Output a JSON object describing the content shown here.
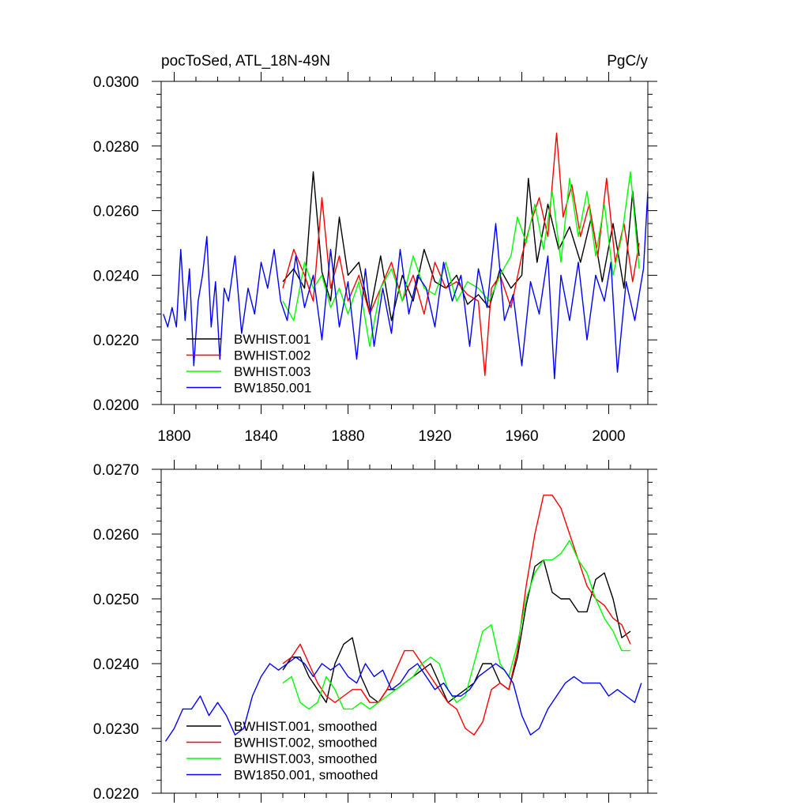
{
  "chart_data": [
    {
      "type": "line",
      "title_left": "pocToSed, ATL_18N-49N",
      "title_right": "PgC/y",
      "xlim": [
        1794,
        2018
      ],
      "ylim": [
        0.02,
        0.03
      ],
      "yticks": [
        "0.0200",
        "0.0220",
        "0.0240",
        "0.0260",
        "0.0280",
        "0.0300"
      ],
      "xticks": [
        "1800",
        "1840",
        "1880",
        "1920",
        "1960",
        "2000"
      ],
      "legend_position": "bottom-left",
      "series": [
        {
          "name": "BWHIST.001",
          "color": "#000000",
          "x": [
            1850,
            1855,
            1860,
            1864,
            1868,
            1872,
            1876,
            1880,
            1885,
            1890,
            1895,
            1900,
            1905,
            1910,
            1915,
            1920,
            1925,
            1930,
            1935,
            1940,
            1945,
            1950,
            1955,
            1960,
            1963,
            1967,
            1972,
            1977,
            1982,
            1987,
            1992,
            1997,
            2002,
            2007,
            2011,
            2014
          ],
          "values": [
            0.0238,
            0.0242,
            0.0236,
            0.0272,
            0.0241,
            0.0232,
            0.0258,
            0.024,
            0.0244,
            0.0228,
            0.0246,
            0.0226,
            0.024,
            0.0232,
            0.0248,
            0.0238,
            0.0236,
            0.024,
            0.0231,
            0.0234,
            0.023,
            0.0242,
            0.0236,
            0.024,
            0.027,
            0.0244,
            0.0262,
            0.0248,
            0.0255,
            0.0244,
            0.0258,
            0.0238,
            0.0256,
            0.0236,
            0.0266,
            0.0246
          ]
        },
        {
          "name": "BWHIST.002",
          "color": "#ff0000",
          "x": [
            1850,
            1855,
            1860,
            1864,
            1868,
            1872,
            1876,
            1880,
            1885,
            1890,
            1895,
            1900,
            1905,
            1910,
            1915,
            1920,
            1925,
            1930,
            1935,
            1940,
            1943,
            1946,
            1950,
            1955,
            1960,
            1964,
            1968,
            1972,
            1976,
            1979,
            1983,
            1987,
            1991,
            1995,
            1999,
            2003,
            2007,
            2011,
            2014
          ],
          "values": [
            0.0236,
            0.0248,
            0.024,
            0.0232,
            0.0264,
            0.0236,
            0.0246,
            0.0232,
            0.024,
            0.0228,
            0.0236,
            0.0244,
            0.0232,
            0.024,
            0.0228,
            0.0244,
            0.0236,
            0.0238,
            0.0234,
            0.0232,
            0.0209,
            0.0236,
            0.024,
            0.023,
            0.0246,
            0.0256,
            0.0264,
            0.0252,
            0.0284,
            0.0258,
            0.0268,
            0.0252,
            0.0262,
            0.0246,
            0.027,
            0.0244,
            0.0256,
            0.0238,
            0.025
          ]
        },
        {
          "name": "BWHIST.003",
          "color": "#00ff00",
          "x": [
            1850,
            1855,
            1860,
            1864,
            1868,
            1872,
            1876,
            1880,
            1885,
            1890,
            1895,
            1900,
            1905,
            1910,
            1915,
            1920,
            1925,
            1930,
            1935,
            1940,
            1945,
            1950,
            1955,
            1958,
            1962,
            1966,
            1970,
            1974,
            1978,
            1982,
            1986,
            1990,
            1994,
            1998,
            2002,
            2006,
            2010,
            2014
          ],
          "values": [
            0.0232,
            0.0226,
            0.0244,
            0.0236,
            0.024,
            0.023,
            0.0236,
            0.0228,
            0.0238,
            0.0218,
            0.0236,
            0.0242,
            0.0232,
            0.0246,
            0.0236,
            0.0234,
            0.0244,
            0.0232,
            0.0238,
            0.0236,
            0.0232,
            0.024,
            0.0246,
            0.0258,
            0.025,
            0.0262,
            0.0248,
            0.0266,
            0.0244,
            0.027,
            0.0252,
            0.0266,
            0.0246,
            0.0262,
            0.024,
            0.0252,
            0.0272,
            0.0242
          ]
        },
        {
          "name": "BW1850.001",
          "color": "#0000ff",
          "x": [
            1795,
            1797,
            1799,
            1801,
            1803,
            1805,
            1807,
            1809,
            1811,
            1813,
            1815,
            1817,
            1819,
            1821,
            1823,
            1825,
            1828,
            1831,
            1834,
            1837,
            1840,
            1843,
            1846,
            1849,
            1852,
            1856,
            1860,
            1864,
            1868,
            1872,
            1876,
            1880,
            1884,
            1888,
            1892,
            1896,
            1900,
            1904,
            1908,
            1912,
            1916,
            1920,
            1924,
            1928,
            1932,
            1936,
            1940,
            1944,
            1948,
            1952,
            1956,
            1960,
            1964,
            1968,
            1972,
            1975,
            1978,
            1982,
            1986,
            1990,
            1994,
            1998,
            2001,
            2004,
            2008,
            2012,
            2016,
            2018
          ],
          "values": [
            0.0228,
            0.0224,
            0.023,
            0.0224,
            0.0248,
            0.0226,
            0.0242,
            0.0212,
            0.0232,
            0.024,
            0.0252,
            0.0224,
            0.0238,
            0.0214,
            0.0236,
            0.0232,
            0.0246,
            0.0222,
            0.0236,
            0.0228,
            0.0244,
            0.0236,
            0.0248,
            0.0232,
            0.0226,
            0.0246,
            0.023,
            0.024,
            0.022,
            0.0248,
            0.0224,
            0.0238,
            0.0214,
            0.0242,
            0.0218,
            0.0236,
            0.0222,
            0.0248,
            0.0228,
            0.024,
            0.0236,
            0.0224,
            0.0244,
            0.0232,
            0.024,
            0.0218,
            0.0242,
            0.023,
            0.0256,
            0.0226,
            0.0234,
            0.0212,
            0.0238,
            0.0228,
            0.0246,
            0.0208,
            0.024,
            0.0226,
            0.0244,
            0.022,
            0.024,
            0.0232,
            0.0244,
            0.021,
            0.0238,
            0.0226,
            0.0242,
            0.0266
          ]
        }
      ]
    },
    {
      "type": "line",
      "xlim": [
        1794,
        2018
      ],
      "ylim": [
        0.022,
        0.027
      ],
      "yticks": [
        "0.0220",
        "0.0230",
        "0.0240",
        "0.0250",
        "0.0260",
        "0.0270"
      ],
      "xticks": [
        "1800",
        "1840",
        "1880",
        "1920",
        "1960",
        "2000"
      ],
      "xtick_labels_shown": false,
      "legend_position": "bottom-left",
      "series": [
        {
          "name": "BWHIST.001, smoothed",
          "color": "#000000",
          "x": [
            1850,
            1854,
            1858,
            1862,
            1866,
            1870,
            1874,
            1878,
            1882,
            1886,
            1890,
            1894,
            1898,
            1902,
            1906,
            1910,
            1914,
            1918,
            1922,
            1926,
            1930,
            1934,
            1938,
            1942,
            1946,
            1950,
            1954,
            1958,
            1962,
            1966,
            1970,
            1974,
            1978,
            1982,
            1986,
            1990,
            1994,
            1998,
            2002,
            2006,
            2010
          ],
          "values": [
            0.0239,
            0.0241,
            0.0241,
            0.0238,
            0.0236,
            0.0234,
            0.024,
            0.0243,
            0.0244,
            0.0238,
            0.0235,
            0.0234,
            0.0236,
            0.0236,
            0.0237,
            0.0238,
            0.0239,
            0.024,
            0.0237,
            0.0234,
            0.0235,
            0.0236,
            0.0237,
            0.024,
            0.024,
            0.0237,
            0.0236,
            0.0241,
            0.0249,
            0.0255,
            0.0256,
            0.0251,
            0.025,
            0.025,
            0.0248,
            0.0248,
            0.0253,
            0.0254,
            0.025,
            0.0244,
            0.0245
          ]
        },
        {
          "name": "BWHIST.002, smoothed",
          "color": "#ff0000",
          "x": [
            1850,
            1854,
            1858,
            1862,
            1866,
            1870,
            1874,
            1878,
            1882,
            1886,
            1890,
            1894,
            1898,
            1902,
            1906,
            1910,
            1914,
            1918,
            1922,
            1926,
            1930,
            1934,
            1938,
            1942,
            1946,
            1950,
            1954,
            1958,
            1962,
            1966,
            1970,
            1974,
            1978,
            1982,
            1986,
            1990,
            1994,
            1998,
            2002,
            2006,
            2010
          ],
          "values": [
            0.024,
            0.0241,
            0.0243,
            0.024,
            0.0237,
            0.0235,
            0.0234,
            0.0235,
            0.0236,
            0.0236,
            0.0234,
            0.0234,
            0.0236,
            0.0239,
            0.0242,
            0.0242,
            0.024,
            0.0238,
            0.0236,
            0.0234,
            0.0233,
            0.023,
            0.0229,
            0.0231,
            0.0236,
            0.0237,
            0.0236,
            0.0242,
            0.0252,
            0.026,
            0.0266,
            0.0266,
            0.0264,
            0.026,
            0.0256,
            0.0252,
            0.025,
            0.0249,
            0.0247,
            0.0246,
            0.0243
          ]
        },
        {
          "name": "BWHIST.003, smoothed",
          "color": "#00ff00",
          "x": [
            1850,
            1854,
            1858,
            1862,
            1866,
            1870,
            1874,
            1878,
            1882,
            1886,
            1890,
            1894,
            1898,
            1902,
            1906,
            1910,
            1914,
            1918,
            1922,
            1926,
            1930,
            1934,
            1938,
            1942,
            1946,
            1950,
            1954,
            1958,
            1962,
            1966,
            1970,
            1974,
            1978,
            1982,
            1986,
            1990,
            1994,
            1998,
            2002,
            2006,
            2010
          ],
          "values": [
            0.0237,
            0.0238,
            0.0234,
            0.0233,
            0.0234,
            0.0238,
            0.0236,
            0.0233,
            0.0233,
            0.0234,
            0.0233,
            0.0234,
            0.0235,
            0.0236,
            0.0237,
            0.0238,
            0.024,
            0.0241,
            0.024,
            0.0236,
            0.0234,
            0.0235,
            0.024,
            0.0245,
            0.0246,
            0.024,
            0.0238,
            0.0243,
            0.025,
            0.0254,
            0.0256,
            0.0256,
            0.0257,
            0.0259,
            0.0256,
            0.0254,
            0.025,
            0.0247,
            0.0245,
            0.0242,
            0.0242
          ]
        },
        {
          "name": "BW1850.001, smoothed",
          "color": "#0000ff",
          "x": [
            1796,
            1800,
            1804,
            1808,
            1812,
            1816,
            1820,
            1824,
            1828,
            1832,
            1836,
            1840,
            1844,
            1848,
            1852,
            1856,
            1860,
            1864,
            1868,
            1872,
            1876,
            1880,
            1884,
            1888,
            1892,
            1896,
            1900,
            1904,
            1908,
            1912,
            1916,
            1920,
            1924,
            1928,
            1932,
            1936,
            1940,
            1944,
            1948,
            1952,
            1956,
            1960,
            1964,
            1968,
            1972,
            1976,
            1980,
            1984,
            1988,
            1992,
            1996,
            2000,
            2004,
            2008,
            2012,
            2015
          ],
          "values": [
            0.0228,
            0.023,
            0.0233,
            0.0233,
            0.0235,
            0.0232,
            0.0234,
            0.0232,
            0.0229,
            0.023,
            0.0235,
            0.0238,
            0.024,
            0.0239,
            0.024,
            0.0241,
            0.024,
            0.0238,
            0.024,
            0.0239,
            0.024,
            0.0238,
            0.0237,
            0.024,
            0.0238,
            0.0239,
            0.0236,
            0.0237,
            0.0239,
            0.024,
            0.0238,
            0.0236,
            0.0237,
            0.0235,
            0.0235,
            0.0236,
            0.0238,
            0.0239,
            0.024,
            0.0239,
            0.0237,
            0.0232,
            0.0229,
            0.023,
            0.0233,
            0.0235,
            0.0237,
            0.0238,
            0.0237,
            0.0237,
            0.0237,
            0.0235,
            0.0236,
            0.0235,
            0.0234,
            0.0237
          ]
        }
      ]
    }
  ]
}
